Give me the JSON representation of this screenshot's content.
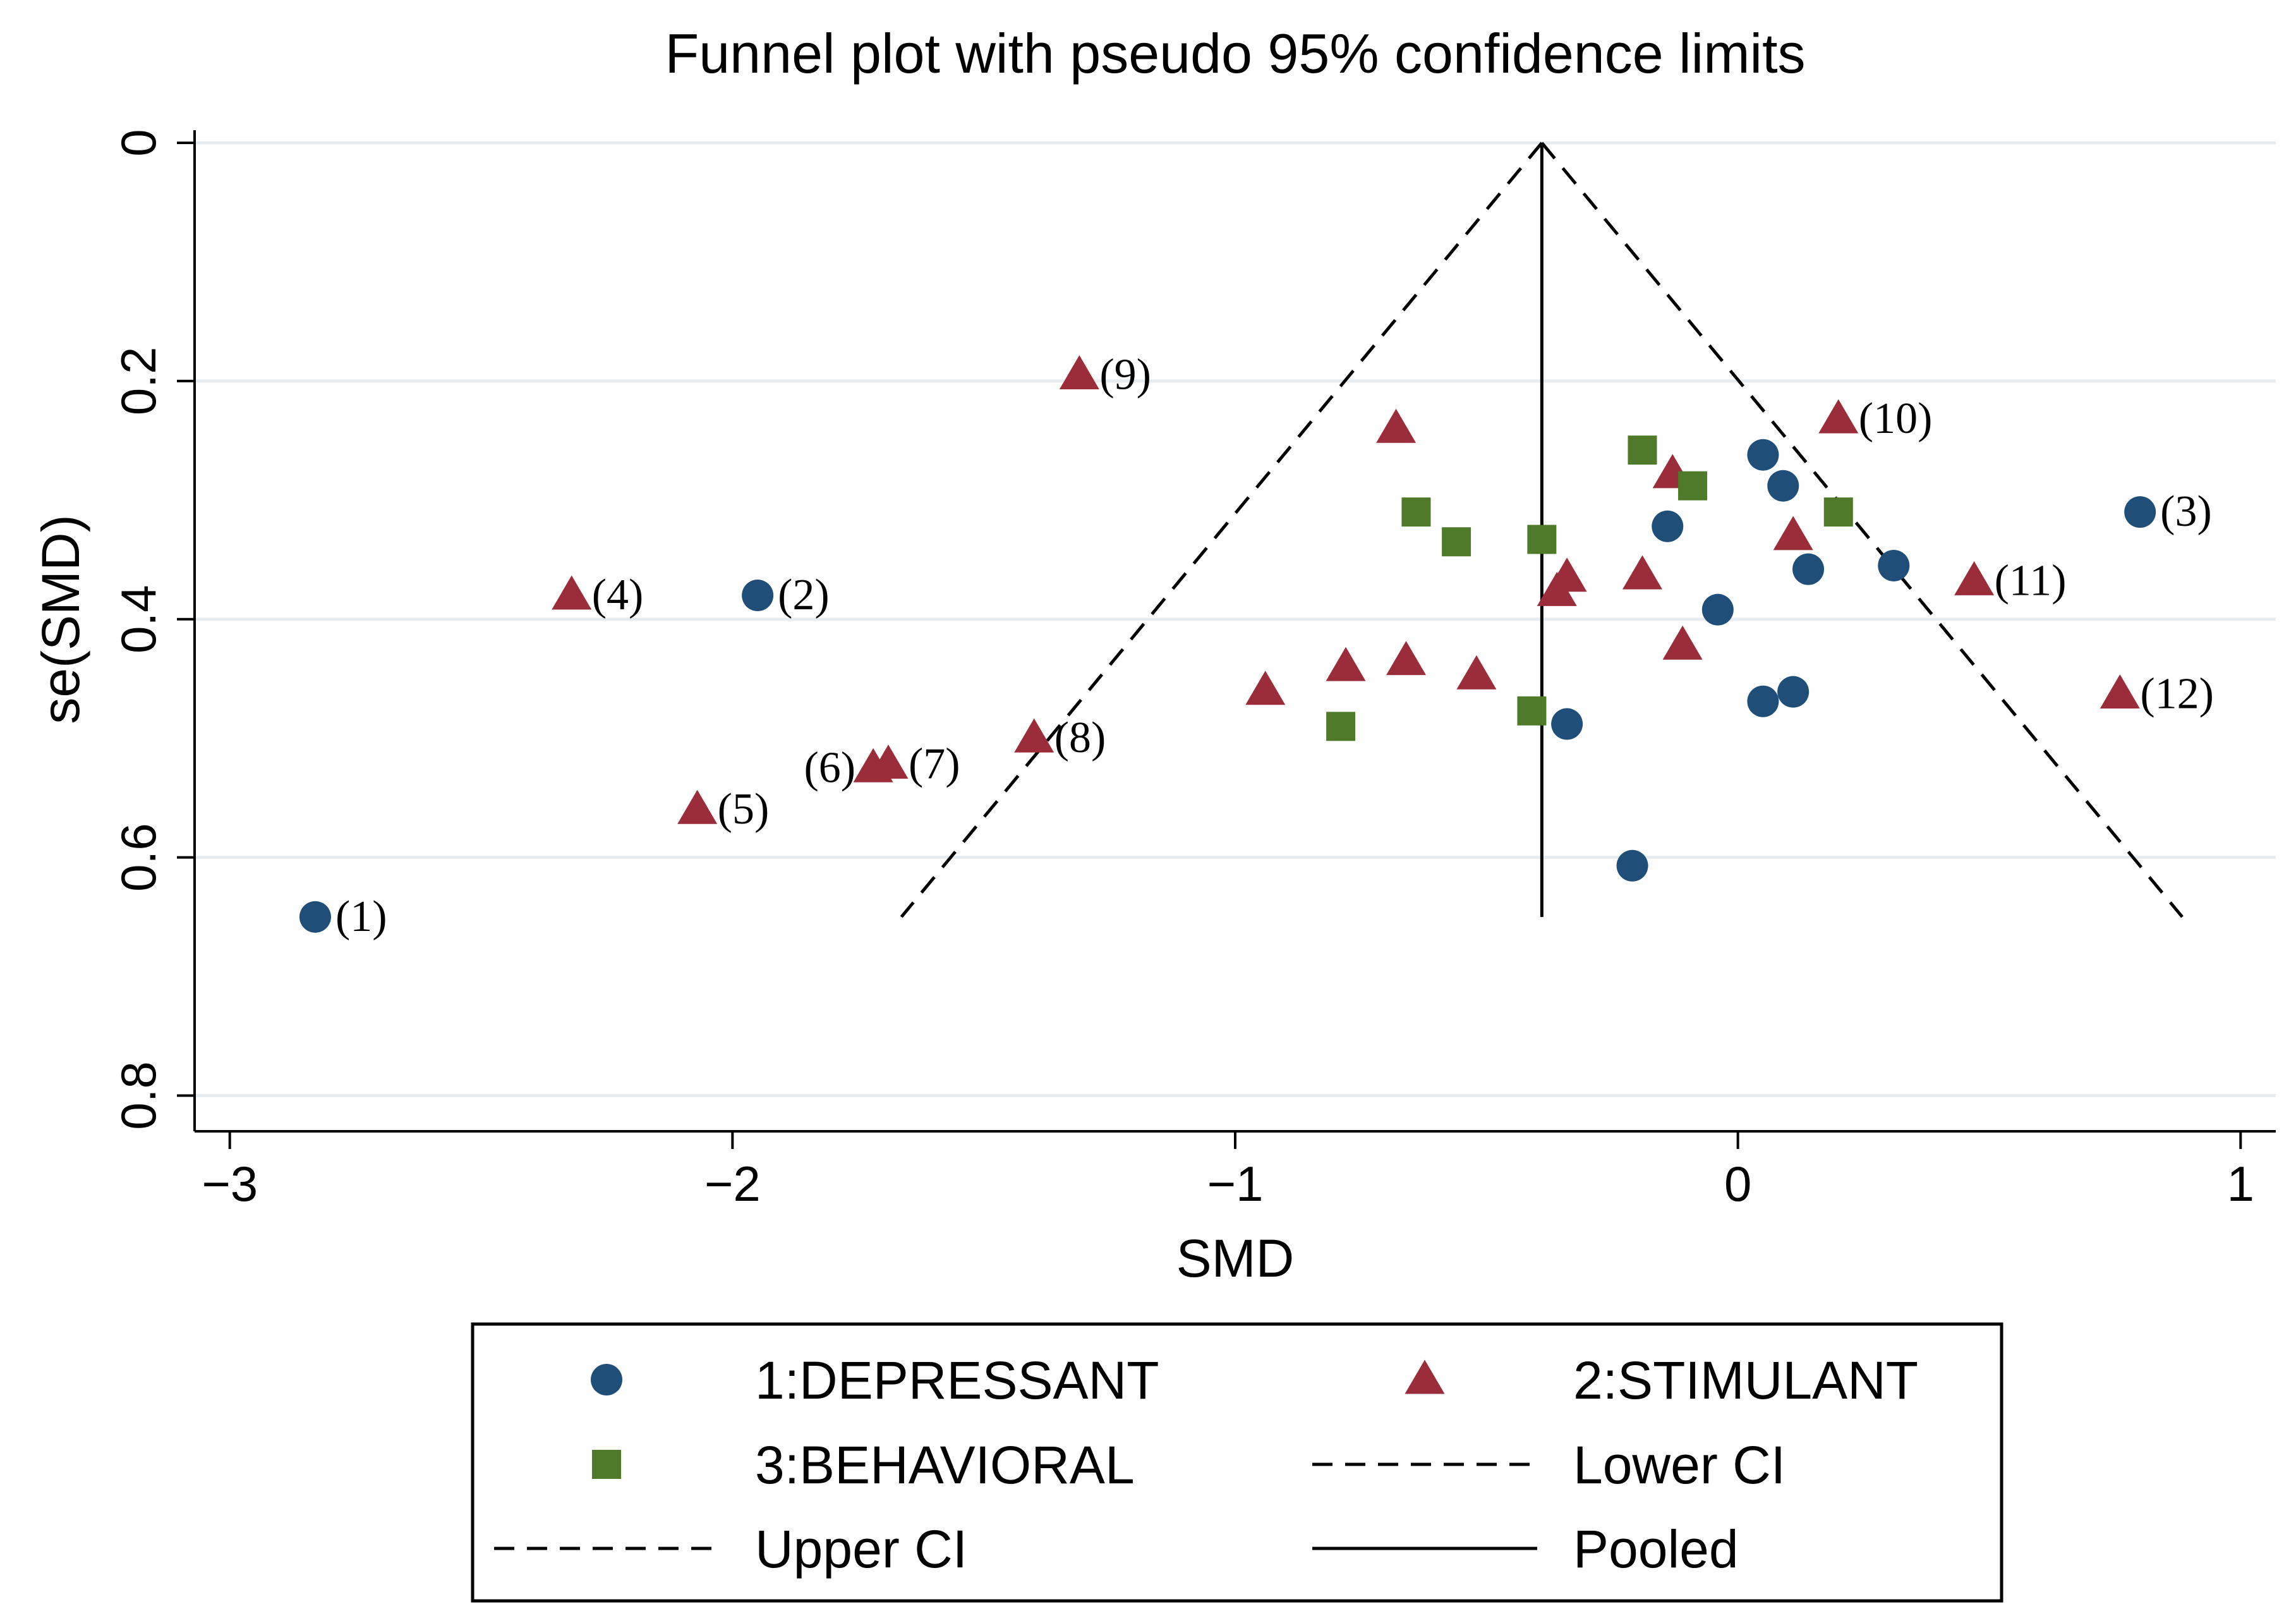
{
  "chart_data": {
    "type": "scatter",
    "title": "Funnel plot with pseudo 95% confidence limits",
    "xlabel": "SMD",
    "ylabel": "se(SMD)",
    "xlim": [
      -3.07,
      1.07
    ],
    "ylim": [
      0,
      0.83
    ],
    "y_reversed": true,
    "x_ticks": [
      {
        "value": -3,
        "label": "−3"
      },
      {
        "value": -2,
        "label": "−2"
      },
      {
        "value": -1,
        "label": "−1"
      },
      {
        "value": 0,
        "label": "0"
      },
      {
        "value": 1,
        "label": "1"
      }
    ],
    "y_ticks": [
      {
        "value": 0,
        "label": "0"
      },
      {
        "value": 0.2,
        "label": "0.2"
      },
      {
        "value": 0.4,
        "label": "0.4"
      },
      {
        "value": 0.6,
        "label": "0.6"
      },
      {
        "value": 0.8,
        "label": "0.8"
      }
    ],
    "grid": "horizontal",
    "pooled": -0.39,
    "ci_max_se": 0.65,
    "series": [
      {
        "name": "1:DEPRESSANT",
        "marker": "circle",
        "color": "#1f4e79",
        "points": [
          {
            "x": -2.83,
            "y": 0.65,
            "label": "(1)"
          },
          {
            "x": -1.95,
            "y": 0.38,
            "label": "(2)"
          },
          {
            "x": 0.8,
            "y": 0.31,
            "label": "(3)"
          },
          {
            "x": 0.05,
            "y": 0.262
          },
          {
            "x": 0.09,
            "y": 0.288
          },
          {
            "x": -0.14,
            "y": 0.322
          },
          {
            "x": 0.14,
            "y": 0.358
          },
          {
            "x": 0.31,
            "y": 0.355
          },
          {
            "x": -0.04,
            "y": 0.392
          },
          {
            "x": 0.11,
            "y": 0.461
          },
          {
            "x": 0.05,
            "y": 0.469
          },
          {
            "x": -0.34,
            "y": 0.488
          },
          {
            "x": -0.21,
            "y": 0.607
          }
        ]
      },
      {
        "name": "2:STIMULANT",
        "marker": "triangle",
        "color": "#9b2d3a",
        "points": [
          {
            "x": -2.32,
            "y": 0.38,
            "label": "(4)"
          },
          {
            "x": -2.07,
            "y": 0.56,
            "label": "(5)"
          },
          {
            "x": -1.72,
            "y": 0.525,
            "label": "(6)"
          },
          {
            "x": -1.69,
            "y": 0.522,
            "label": "(7)"
          },
          {
            "x": -1.4,
            "y": 0.5,
            "label": "(8)"
          },
          {
            "x": -1.31,
            "y": 0.195,
            "label": "(9)"
          },
          {
            "x": 0.2,
            "y": 0.232,
            "label": "(10)"
          },
          {
            "x": 0.47,
            "y": 0.368,
            "label": "(11)"
          },
          {
            "x": 0.76,
            "y": 0.463,
            "label": "(12)"
          },
          {
            "x": -0.68,
            "y": 0.24
          },
          {
            "x": -0.13,
            "y": 0.278
          },
          {
            "x": 0.11,
            "y": 0.33
          },
          {
            "x": -0.34,
            "y": 0.365
          },
          {
            "x": -0.36,
            "y": 0.377
          },
          {
            "x": -0.19,
            "y": 0.363
          },
          {
            "x": -0.11,
            "y": 0.422
          },
          {
            "x": -0.66,
            "y": 0.435
          },
          {
            "x": -0.78,
            "y": 0.44
          },
          {
            "x": -0.52,
            "y": 0.447
          },
          {
            "x": -0.94,
            "y": 0.46
          }
        ]
      },
      {
        "name": "3:BEHAVIORAL",
        "marker": "square",
        "color": "#4e7a2a",
        "points": [
          {
            "x": -0.19,
            "y": 0.258
          },
          {
            "x": -0.09,
            "y": 0.288
          },
          {
            "x": 0.2,
            "y": 0.31
          },
          {
            "x": -0.64,
            "y": 0.31
          },
          {
            "x": -0.56,
            "y": 0.335
          },
          {
            "x": -0.39,
            "y": 0.333
          },
          {
            "x": -0.41,
            "y": 0.477
          },
          {
            "x": -0.79,
            "y": 0.49
          }
        ]
      }
    ],
    "legend": {
      "placement": "bottom",
      "entries": [
        {
          "label": "1:DEPRESSANT",
          "kind": "circle",
          "color": "#1f4e79"
        },
        {
          "label": "2:STIMULANT",
          "kind": "triangle",
          "color": "#9b2d3a"
        },
        {
          "label": "3:BEHAVIORAL",
          "kind": "square",
          "color": "#4e7a2a"
        },
        {
          "label": "Lower CI",
          "kind": "dash",
          "color": "#000000"
        },
        {
          "label": "Upper CI",
          "kind": "dash",
          "color": "#000000"
        },
        {
          "label": "Pooled",
          "kind": "solid",
          "color": "#000000"
        }
      ]
    }
  }
}
